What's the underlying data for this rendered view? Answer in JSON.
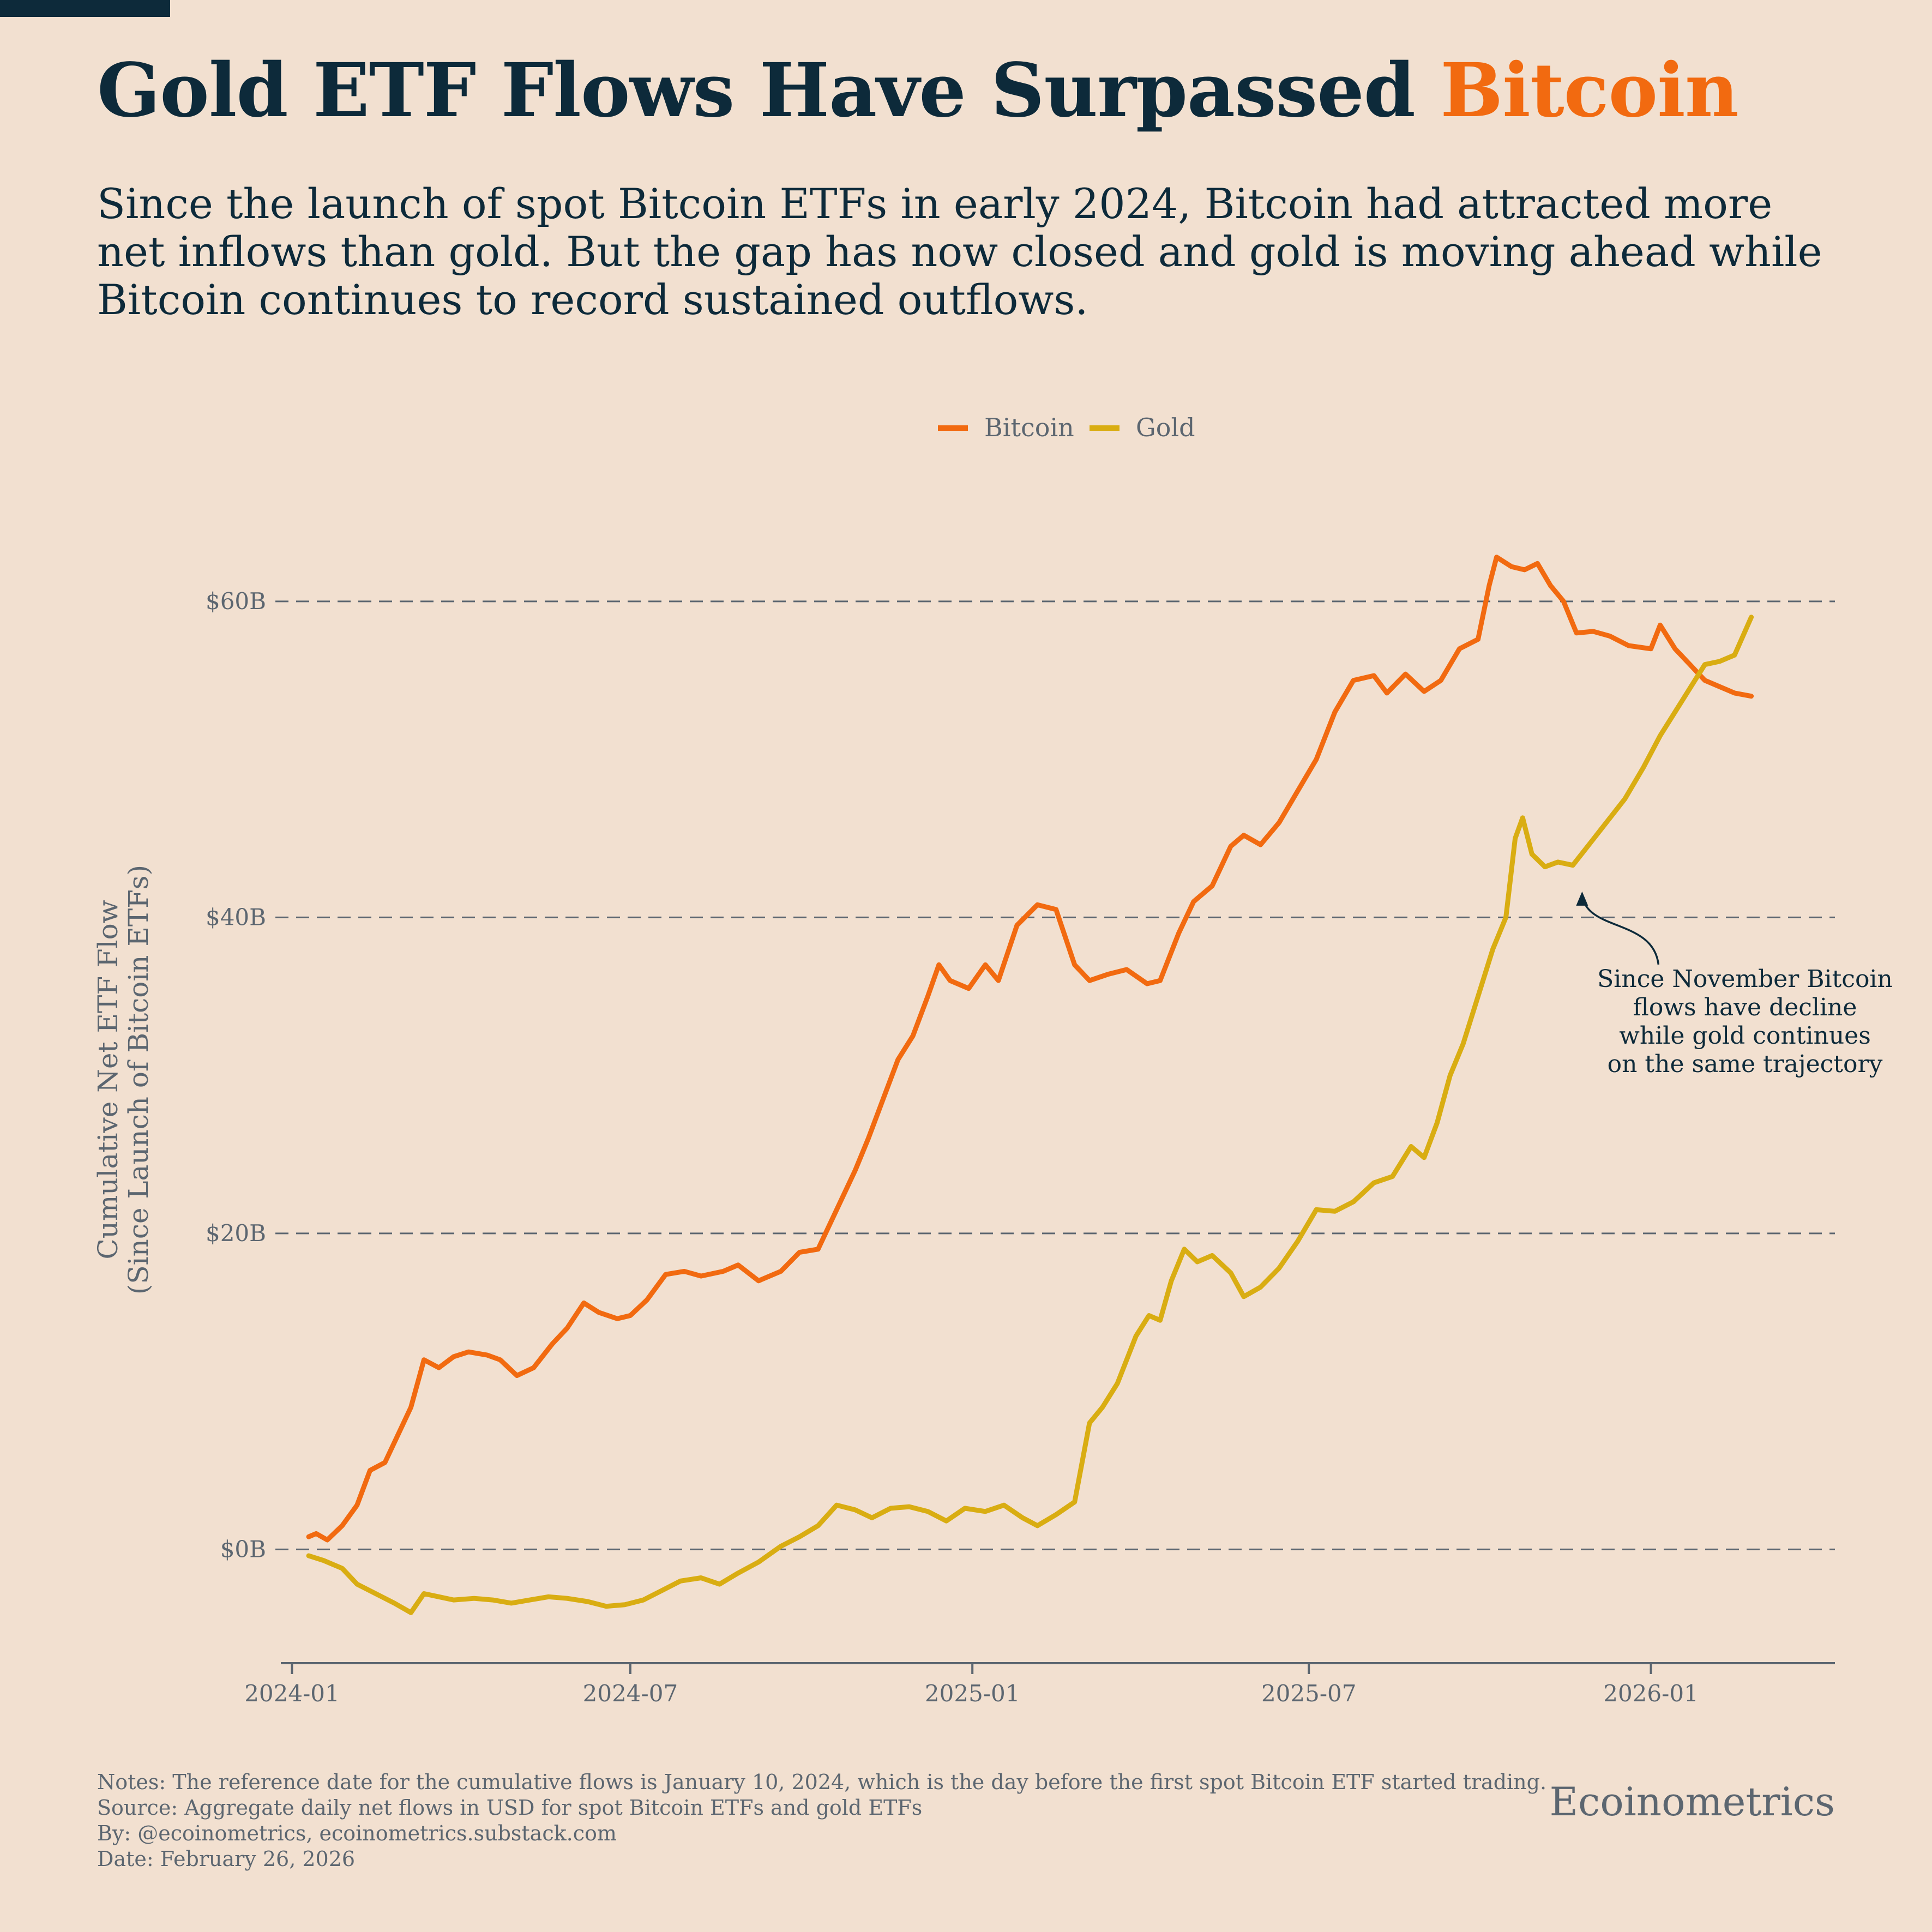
{
  "title": {
    "main": "Gold ETF Flows Have Surpassed ",
    "highlight": "Bitcoin"
  },
  "subtitle": "Since the launch of spot Bitcoin ETFs in early 2024, Bitcoin had attracted more net inflows than gold. But the gap has now closed and gold is moving ahead while Bitcoin continues to record sustained outflows.",
  "colors": {
    "bitcoin": "#f26a10",
    "gold": "#d9ad12",
    "text": "#0d2a3a",
    "muted": "#5c6670",
    "background": "#f2e0d0"
  },
  "chart_data": {
    "type": "line",
    "ylabel": "Cumulative Net ETF Flow\n(Since Launch of Bitcoin ETFs)",
    "xlabel": "",
    "ylim": [
      -7.2,
      67
    ],
    "xlim": [
      "2023-12-26",
      "2026-04-10"
    ],
    "yticks": [
      0,
      20,
      40,
      60
    ],
    "ytick_labels": [
      "$0B",
      "$20B",
      "$40B",
      "$60B"
    ],
    "xticks": [
      "2024-01-01",
      "2024-07-01",
      "2025-01-01",
      "2025-07-01",
      "2026-01-01"
    ],
    "xtick_labels": [
      "2024-01",
      "2024-07",
      "2025-01",
      "2025-07",
      "2026-01"
    ],
    "grid": "horizontal dashed",
    "legend_position": "top-center",
    "series": [
      {
        "name": "Bitcoin",
        "color": "#f26a10",
        "points": [
          [
            "2024-01-10",
            0.8
          ],
          [
            "2024-01-14",
            1.0
          ],
          [
            "2024-01-20",
            0.6
          ],
          [
            "2024-01-28",
            1.5
          ],
          [
            "2024-02-05",
            2.8
          ],
          [
            "2024-02-12",
            5.0
          ],
          [
            "2024-02-20",
            5.5
          ],
          [
            "2024-02-28",
            7.5
          ],
          [
            "2024-03-05",
            9.0
          ],
          [
            "2024-03-12",
            12.0
          ],
          [
            "2024-03-20",
            11.5
          ],
          [
            "2024-03-28",
            12.2
          ],
          [
            "2024-04-05",
            12.5
          ],
          [
            "2024-04-15",
            12.3
          ],
          [
            "2024-04-22",
            12.0
          ],
          [
            "2024-05-01",
            11.0
          ],
          [
            "2024-05-10",
            11.5
          ],
          [
            "2024-05-20",
            13.0
          ],
          [
            "2024-05-28",
            14.0
          ],
          [
            "2024-06-06",
            15.6
          ],
          [
            "2024-06-14",
            15.0
          ],
          [
            "2024-06-24",
            14.6
          ],
          [
            "2024-07-01",
            14.8
          ],
          [
            "2024-07-10",
            15.8
          ],
          [
            "2024-07-20",
            17.4
          ],
          [
            "2024-07-30",
            17.6
          ],
          [
            "2024-08-08",
            17.3
          ],
          [
            "2024-08-20",
            17.6
          ],
          [
            "2024-08-28",
            18.0
          ],
          [
            "2024-09-08",
            17.0
          ],
          [
            "2024-09-20",
            17.6
          ],
          [
            "2024-09-30",
            18.8
          ],
          [
            "2024-10-10",
            19.0
          ],
          [
            "2024-10-20",
            21.5
          ],
          [
            "2024-10-30",
            24.0
          ],
          [
            "2024-11-06",
            26.0
          ],
          [
            "2024-11-14",
            28.5
          ],
          [
            "2024-11-22",
            31.0
          ],
          [
            "2024-11-30",
            32.5
          ],
          [
            "2024-12-08",
            35.0
          ],
          [
            "2024-12-14",
            37.0
          ],
          [
            "2024-12-20",
            36.0
          ],
          [
            "2024-12-30",
            35.5
          ],
          [
            "2025-01-08",
            37.0
          ],
          [
            "2025-01-15",
            36.0
          ],
          [
            "2025-01-25",
            39.5
          ],
          [
            "2025-02-05",
            40.8
          ],
          [
            "2025-02-15",
            40.5
          ],
          [
            "2025-02-25",
            37.0
          ],
          [
            "2025-03-05",
            36.0
          ],
          [
            "2025-03-15",
            36.4
          ],
          [
            "2025-03-25",
            36.7
          ],
          [
            "2025-04-05",
            35.8
          ],
          [
            "2025-04-12",
            36.0
          ],
          [
            "2025-04-22",
            39.0
          ],
          [
            "2025-04-30",
            41.0
          ],
          [
            "2025-05-10",
            42.0
          ],
          [
            "2025-05-20",
            44.5
          ],
          [
            "2025-05-27",
            45.2
          ],
          [
            "2025-06-05",
            44.6
          ],
          [
            "2025-06-15",
            46.0
          ],
          [
            "2025-06-25",
            48.0
          ],
          [
            "2025-07-05",
            50.0
          ],
          [
            "2025-07-15",
            53.0
          ],
          [
            "2025-07-25",
            55.0
          ],
          [
            "2025-08-05",
            55.3
          ],
          [
            "2025-08-12",
            54.2
          ],
          [
            "2025-08-22",
            55.4
          ],
          [
            "2025-09-01",
            54.3
          ],
          [
            "2025-09-10",
            55.0
          ],
          [
            "2025-09-20",
            57.0
          ],
          [
            "2025-09-30",
            57.6
          ],
          [
            "2025-10-06",
            61.0
          ],
          [
            "2025-10-10",
            62.8
          ],
          [
            "2025-10-18",
            62.2
          ],
          [
            "2025-10-25",
            62.0
          ],
          [
            "2025-11-01",
            62.4
          ],
          [
            "2025-11-08",
            61.0
          ],
          [
            "2025-11-15",
            60.0
          ],
          [
            "2025-11-22",
            58.0
          ],
          [
            "2025-12-01",
            58.1
          ],
          [
            "2025-12-10",
            57.8
          ],
          [
            "2025-12-20",
            57.2
          ],
          [
            "2026-01-01",
            57.0
          ],
          [
            "2026-01-06",
            58.5
          ],
          [
            "2026-01-14",
            57.0
          ],
          [
            "2026-01-22",
            56.0
          ],
          [
            "2026-01-30",
            55.0
          ],
          [
            "2026-02-07",
            54.6
          ],
          [
            "2026-02-15",
            54.2
          ],
          [
            "2026-02-24",
            54.0
          ]
        ]
      },
      {
        "name": "Gold",
        "color": "#d9ad12",
        "points": [
          [
            "2024-01-10",
            -0.4
          ],
          [
            "2024-01-18",
            -0.7
          ],
          [
            "2024-01-28",
            -1.2
          ],
          [
            "2024-02-05",
            -2.2
          ],
          [
            "2024-02-15",
            -2.8
          ],
          [
            "2024-02-25",
            -3.4
          ],
          [
            "2024-03-05",
            -4.0
          ],
          [
            "2024-03-12",
            -2.8
          ],
          [
            "2024-03-20",
            -3.0
          ],
          [
            "2024-03-28",
            -3.2
          ],
          [
            "2024-04-08",
            -3.1
          ],
          [
            "2024-04-18",
            -3.2
          ],
          [
            "2024-04-28",
            -3.4
          ],
          [
            "2024-05-08",
            -3.2
          ],
          [
            "2024-05-18",
            -3.0
          ],
          [
            "2024-05-28",
            -3.1
          ],
          [
            "2024-06-08",
            -3.3
          ],
          [
            "2024-06-18",
            -3.6
          ],
          [
            "2024-06-28",
            -3.5
          ],
          [
            "2024-07-08",
            -3.2
          ],
          [
            "2024-07-18",
            -2.6
          ],
          [
            "2024-07-28",
            -2.0
          ],
          [
            "2024-08-08",
            -1.8
          ],
          [
            "2024-08-18",
            -2.2
          ],
          [
            "2024-08-28",
            -1.5
          ],
          [
            "2024-09-08",
            -0.8
          ],
          [
            "2024-09-20",
            0.2
          ],
          [
            "2024-09-30",
            0.8
          ],
          [
            "2024-10-10",
            1.5
          ],
          [
            "2024-10-20",
            2.8
          ],
          [
            "2024-10-30",
            2.5
          ],
          [
            "2024-11-08",
            2.0
          ],
          [
            "2024-11-18",
            2.6
          ],
          [
            "2024-11-28",
            2.7
          ],
          [
            "2024-12-08",
            2.4
          ],
          [
            "2024-12-18",
            1.8
          ],
          [
            "2024-12-28",
            2.6
          ],
          [
            "2025-01-08",
            2.4
          ],
          [
            "2025-01-18",
            2.8
          ],
          [
            "2025-01-28",
            2.0
          ],
          [
            "2025-02-05",
            1.5
          ],
          [
            "2025-02-15",
            2.2
          ],
          [
            "2025-02-25",
            3.0
          ],
          [
            "2025-03-05",
            8.0
          ],
          [
            "2025-03-12",
            9.0
          ],
          [
            "2025-03-20",
            10.5
          ],
          [
            "2025-03-30",
            13.5
          ],
          [
            "2025-04-06",
            14.8
          ],
          [
            "2025-04-12",
            14.5
          ],
          [
            "2025-04-18",
            17.0
          ],
          [
            "2025-04-25",
            19.0
          ],
          [
            "2025-05-02",
            18.2
          ],
          [
            "2025-05-10",
            18.6
          ],
          [
            "2025-05-20",
            17.5
          ],
          [
            "2025-05-27",
            16.0
          ],
          [
            "2025-06-05",
            16.6
          ],
          [
            "2025-06-15",
            17.8
          ],
          [
            "2025-06-25",
            19.5
          ],
          [
            "2025-07-05",
            21.5
          ],
          [
            "2025-07-15",
            21.4
          ],
          [
            "2025-07-25",
            22.0
          ],
          [
            "2025-08-05",
            23.2
          ],
          [
            "2025-08-15",
            23.6
          ],
          [
            "2025-08-25",
            25.5
          ],
          [
            "2025-09-01",
            24.8
          ],
          [
            "2025-09-08",
            27.0
          ],
          [
            "2025-09-15",
            30.0
          ],
          [
            "2025-09-22",
            32.0
          ],
          [
            "2025-09-30",
            35.0
          ],
          [
            "2025-10-08",
            38.0
          ],
          [
            "2025-10-15",
            40.0
          ],
          [
            "2025-10-20",
            45.0
          ],
          [
            "2025-10-24",
            46.3
          ],
          [
            "2025-10-29",
            44.0
          ],
          [
            "2025-11-05",
            43.2
          ],
          [
            "2025-11-12",
            43.5
          ],
          [
            "2025-11-20",
            43.3
          ],
          [
            "2025-11-28",
            44.5
          ],
          [
            "2025-12-08",
            46.0
          ],
          [
            "2025-12-18",
            47.5
          ],
          [
            "2025-12-28",
            49.5
          ],
          [
            "2026-01-06",
            51.5
          ],
          [
            "2026-01-14",
            53.0
          ],
          [
            "2026-01-22",
            54.5
          ],
          [
            "2026-01-30",
            56.0
          ],
          [
            "2026-02-07",
            56.2
          ],
          [
            "2026-02-15",
            56.6
          ],
          [
            "2026-02-24",
            59.0
          ]
        ]
      }
    ],
    "annotation": {
      "text": [
        "Since November Bitcoin",
        "flows have decline",
        "while gold continues",
        "on the same trajectory"
      ],
      "arrow_target": [
        "2025-11-25",
        41.5
      ]
    }
  },
  "footer": {
    "notes": "Notes: The reference date for the cumulative flows is January 10, 2024, which is the day before the first spot Bitcoin ETF started trading.",
    "source": "Source: Aggregate daily net flows in USD for spot Bitcoin ETFs and gold ETFs",
    "by": "By: @ecoinometrics, ecoinometrics.substack.com",
    "date": "Date: February 26, 2026"
  },
  "brand": "Ecoinometrics"
}
